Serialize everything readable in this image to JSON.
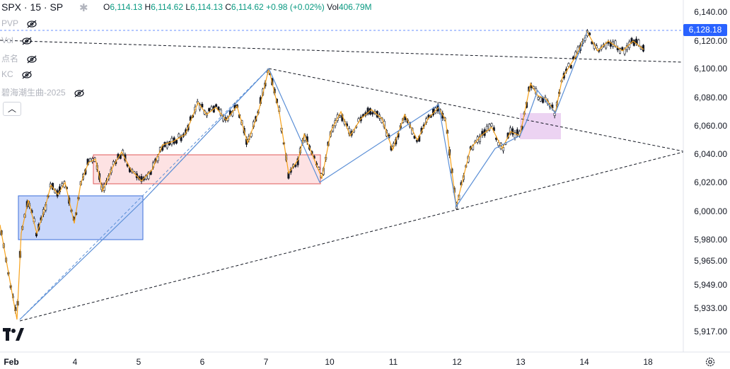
{
  "legend": {
    "symbol": "SPX · 15 · SP",
    "o_key": "O",
    "o_val": "6,114.13",
    "h_key": "H",
    "h_val": "6,114.62",
    "l_key": "L",
    "l_val": "6,114.13",
    "c_key": "C",
    "c_val": "6,114.62",
    "change": "+0.98 (+0.02%)",
    "vol_key": "Vol",
    "vol_val": "406.79",
    "vol_unit": "M"
  },
  "indicators": [
    {
      "label": "PVP"
    },
    {
      "label": "Vol"
    },
    {
      "label": "点名"
    },
    {
      "label": "KC"
    },
    {
      "label": "碧海潮生曲-2025"
    }
  ],
  "collapse_glyph": "︿",
  "price_axis": {
    "labels": [
      "6,140.00",
      "6,120.00",
      "6,100.00",
      "6,080.00",
      "6,060.00",
      "6,040.00",
      "6,020.00",
      "6,000.00",
      "5,980.00",
      "5,965.00",
      "5,949.00",
      "5,933.00",
      "5,917.00"
    ],
    "current_price": "6,128.18"
  },
  "time_axis": {
    "labels": [
      "Feb",
      "4",
      "5",
      "6",
      "7",
      "10",
      "11",
      "12",
      "13",
      "14",
      "18"
    ]
  },
  "colors": {
    "up": "#089981",
    "candle": "#131722",
    "orange_zigzag": "#f7a21b",
    "blue_zigzag": "#5b8fd6",
    "blue_box_fill": "#c9d7fb",
    "red_box_fill": "#fde2e3",
    "purple_box_fill": "#ecd3f2",
    "accent": "#2962ff"
  },
  "icons": {
    "settings": "asterisk-settings-icon",
    "visibility": "eye-crossed-icon",
    "logo": "tradingview-logo-icon",
    "axis_settings": "gear-icon"
  }
}
